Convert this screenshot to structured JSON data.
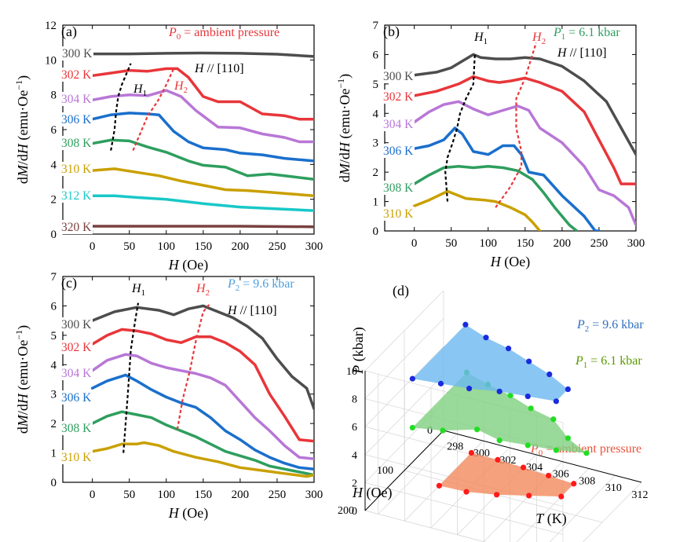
{
  "figure": {
    "colors": {
      "300": "#4d4d4d",
      "302": "#e8363a",
      "304": "#b877d6",
      "306": "#1a6fcc",
      "308": "#2e9e5e",
      "310": "#c9a000",
      "312": "#19c8c8",
      "320": "#7a4040",
      "H1": "#000000",
      "H2": "#e8363a"
    }
  },
  "chart_data": [
    {
      "type": "line",
      "panel": "(a)",
      "pressure_sym": "P",
      "pressure_sub": "0",
      "pressure_text": " = ambient pressure",
      "pressure_color": "#e8363a",
      "field_text": "H // [110]",
      "xlabel": "H (Oe)",
      "ylabel": "dM/dH (emu·Oe⁻¹)",
      "xlim": [
        -40,
        300
      ],
      "ylim": [
        0,
        12
      ],
      "xticks": [
        0,
        50,
        100,
        150,
        200,
        250,
        300
      ],
      "yticks": [
        0,
        2,
        4,
        6,
        8,
        10,
        12
      ],
      "series": [
        {
          "name": "300 K",
          "color_key": "300",
          "x": [
            0,
            50,
            100,
            150,
            200,
            250,
            300
          ],
          "y": [
            10.35,
            10.35,
            10.38,
            10.4,
            10.38,
            10.33,
            10.2
          ]
        },
        {
          "name": "302 K",
          "color_key": "302",
          "x": [
            0,
            25,
            50,
            75,
            100,
            115,
            130,
            150,
            170,
            200,
            230,
            260,
            280,
            300
          ],
          "y": [
            9.1,
            9.25,
            9.4,
            9.35,
            9.5,
            9.5,
            9.0,
            7.9,
            7.6,
            7.6,
            6.9,
            6.8,
            6.6,
            6.6
          ]
        },
        {
          "name": "304 K",
          "color_key": "304",
          "x": [
            0,
            25,
            50,
            75,
            100,
            120,
            140,
            170,
            200,
            230,
            260,
            280,
            300
          ],
          "y": [
            7.7,
            7.9,
            8.0,
            7.95,
            8.25,
            7.9,
            7.1,
            6.15,
            6.1,
            5.75,
            5.55,
            5.3,
            5.3
          ]
        },
        {
          "name": "306 K",
          "color_key": "306",
          "x": [
            0,
            25,
            50,
            75,
            90,
            110,
            130,
            150,
            180,
            200,
            230,
            260,
            300
          ],
          "y": [
            6.6,
            6.85,
            6.95,
            6.9,
            6.85,
            5.9,
            5.3,
            4.95,
            4.85,
            4.65,
            4.55,
            4.35,
            4.2
          ]
        },
        {
          "name": "308 K",
          "color_key": "308",
          "x": [
            0,
            25,
            50,
            75,
            100,
            130,
            150,
            180,
            210,
            240,
            270,
            300
          ],
          "y": [
            5.2,
            5.4,
            5.35,
            5.0,
            4.7,
            4.2,
            3.95,
            3.85,
            3.35,
            3.45,
            3.3,
            3.15
          ]
        },
        {
          "name": "310 K",
          "color_key": "310",
          "x": [
            0,
            30,
            60,
            90,
            120,
            150,
            180,
            210,
            240,
            270,
            300
          ],
          "y": [
            3.65,
            3.75,
            3.55,
            3.35,
            3.05,
            2.8,
            2.55,
            2.5,
            2.4,
            2.3,
            2.2
          ]
        },
        {
          "name": "312 K",
          "color_key": "312",
          "x": [
            0,
            30,
            60,
            100,
            150,
            200,
            250,
            300
          ],
          "y": [
            2.2,
            2.2,
            2.1,
            2.0,
            1.75,
            1.55,
            1.45,
            1.35
          ]
        },
        {
          "name": "320 K",
          "color_key": "320",
          "x": [
            0,
            100,
            200,
            300
          ],
          "y": [
            0.45,
            0.45,
            0.45,
            0.42
          ]
        }
      ],
      "phase_lines": [
        {
          "name": "H1",
          "color_key": "H1",
          "x": [
            25,
            30,
            32,
            35,
            40,
            52
          ],
          "y": [
            4.8,
            6.0,
            7.0,
            7.9,
            8.6,
            9.8
          ]
        },
        {
          "name": "H2",
          "color_key": "H2",
          "x": [
            55,
            65,
            75,
            88,
            98,
            110
          ],
          "y": [
            4.8,
            5.8,
            6.8,
            7.6,
            8.4,
            9.5
          ]
        }
      ]
    },
    {
      "type": "line",
      "panel": "(b)",
      "pressure_sym": "P",
      "pressure_sub": "1",
      "pressure_text": " = 6.1 kbar",
      "pressure_color": "#2e9e5e",
      "field_text": "H // [110]",
      "xlabel": "H (Oe)",
      "ylabel": "dM/dH (emu·Oe⁻¹)",
      "xlim": [
        -40,
        300
      ],
      "ylim": [
        0,
        7
      ],
      "xticks": [
        0,
        50,
        100,
        150,
        200,
        250,
        300
      ],
      "yticks": [
        0,
        1,
        2,
        3,
        4,
        5,
        6,
        7
      ],
      "series": [
        {
          "name": "300 K",
          "color_key": "300",
          "x": [
            0,
            30,
            50,
            70,
            80,
            90,
            110,
            130,
            150,
            170,
            200,
            230,
            260,
            280,
            300
          ],
          "y": [
            5.3,
            5.4,
            5.55,
            5.85,
            6.0,
            5.9,
            5.85,
            5.85,
            5.9,
            5.85,
            5.6,
            5.1,
            4.4,
            3.5,
            2.6
          ]
        },
        {
          "name": "302 K",
          "color_key": "302",
          "x": [
            0,
            30,
            60,
            80,
            100,
            115,
            130,
            150,
            170,
            200,
            230,
            250,
            270,
            280,
            300
          ],
          "y": [
            4.6,
            4.75,
            5.0,
            5.25,
            5.1,
            5.05,
            5.1,
            5.2,
            5.05,
            4.75,
            4.05,
            3.1,
            2.15,
            1.6,
            1.6
          ]
        },
        {
          "name": "304 K",
          "color_key": "304",
          "x": [
            0,
            20,
            40,
            60,
            80,
            100,
            120,
            140,
            155,
            170,
            200,
            230,
            250,
            270,
            290,
            300
          ],
          "y": [
            3.7,
            4.05,
            4.3,
            4.4,
            4.15,
            3.95,
            4.1,
            4.25,
            4.1,
            3.5,
            3.0,
            2.2,
            1.4,
            1.2,
            0.8,
            0.2
          ]
        },
        {
          "name": "306 K",
          "color_key": "306",
          "x": [
            0,
            20,
            40,
            55,
            65,
            80,
            100,
            120,
            135,
            145,
            155,
            175,
            200,
            230,
            245,
            250
          ],
          "y": [
            2.8,
            2.9,
            3.1,
            3.5,
            3.3,
            2.7,
            2.6,
            2.9,
            2.9,
            2.6,
            2.0,
            1.9,
            1.2,
            0.5,
            0.0,
            0.0
          ]
        },
        {
          "name": "308 K",
          "color_key": "308",
          "x": [
            0,
            20,
            40,
            60,
            80,
            100,
            120,
            140,
            160,
            175,
            190,
            210,
            220
          ],
          "y": [
            1.6,
            1.9,
            2.15,
            2.2,
            2.15,
            2.2,
            2.15,
            2.05,
            1.75,
            1.3,
            0.8,
            0.2,
            0.0
          ]
        },
        {
          "name": "310 K",
          "color_key": "310",
          "x": [
            0,
            20,
            45,
            70,
            95,
            110,
            130,
            150,
            160,
            170
          ],
          "y": [
            0.85,
            1.05,
            1.35,
            1.1,
            1.05,
            1.0,
            0.8,
            0.55,
            0.3,
            0.0
          ]
        }
      ],
      "phase_lines": [
        {
          "name": "H1",
          "color_key": "H1",
          "x": [
            45,
            42,
            45,
            52,
            58,
            62,
            70,
            80,
            82
          ],
          "y": [
            1.0,
            2.0,
            2.5,
            3.0,
            3.5,
            4.0,
            4.5,
            5.0,
            6.0
          ]
        },
        {
          "name": "H2",
          "color_key": "H2",
          "x": [
            110,
            130,
            145,
            145,
            138,
            138,
            150,
            160,
            165
          ],
          "y": [
            0.8,
            1.5,
            2.2,
            2.7,
            3.5,
            4.5,
            5.2,
            6.0,
            6.4
          ]
        }
      ]
    },
    {
      "type": "line",
      "panel": "(c)",
      "pressure_sym": "P",
      "pressure_sub": "2",
      "pressure_text": " = 9.6 kbar",
      "pressure_color": "#4f9fde",
      "field_text": "H // [110]",
      "xlabel": "H (Oe)",
      "ylabel": "dM/dH (emu·Oe⁻¹)",
      "xlim": [
        -40,
        300
      ],
      "ylim": [
        0,
        7
      ],
      "xticks": [
        0,
        50,
        100,
        150,
        200,
        250,
        300
      ],
      "yticks": [
        0,
        1,
        2,
        3,
        4,
        5,
        6,
        7
      ],
      "series": [
        {
          "name": "300 K",
          "color_key": "300",
          "x": [
            0,
            30,
            60,
            90,
            110,
            130,
            150,
            170,
            190,
            210,
            230,
            250,
            270,
            290,
            300
          ],
          "y": [
            5.5,
            5.8,
            5.95,
            5.85,
            5.7,
            5.9,
            6.0,
            5.8,
            5.6,
            5.3,
            4.9,
            4.2,
            3.6,
            3.2,
            2.5
          ]
        },
        {
          "name": "302 K",
          "color_key": "302",
          "x": [
            0,
            20,
            40,
            60,
            80,
            100,
            120,
            140,
            160,
            180,
            200,
            220,
            240,
            260,
            280,
            300
          ],
          "y": [
            4.7,
            5.0,
            5.2,
            5.15,
            5.05,
            4.85,
            4.75,
            4.95,
            4.95,
            4.75,
            4.45,
            4.0,
            3.0,
            2.25,
            1.45,
            1.4
          ]
        },
        {
          "name": "304 K",
          "color_key": "304",
          "x": [
            0,
            20,
            45,
            60,
            80,
            100,
            120,
            140,
            160,
            180,
            200,
            220,
            240,
            260,
            280,
            300
          ],
          "y": [
            3.8,
            4.15,
            4.35,
            4.3,
            4.05,
            3.9,
            3.8,
            3.7,
            3.55,
            3.3,
            2.75,
            2.2,
            1.75,
            1.25,
            0.85,
            0.8
          ]
        },
        {
          "name": "306 K",
          "color_key": "306",
          "x": [
            0,
            20,
            45,
            60,
            80,
            100,
            120,
            140,
            160,
            180,
            200,
            220,
            240,
            260,
            280,
            300
          ],
          "y": [
            3.2,
            3.45,
            3.65,
            3.45,
            3.15,
            2.9,
            2.7,
            2.55,
            2.2,
            1.75,
            1.45,
            1.1,
            0.85,
            0.65,
            0.5,
            0.45
          ]
        },
        {
          "name": "308 K",
          "color_key": "308",
          "x": [
            0,
            20,
            40,
            60,
            80,
            100,
            120,
            140,
            160,
            180,
            200,
            220,
            240,
            260,
            280,
            300
          ],
          "y": [
            2.0,
            2.25,
            2.4,
            2.3,
            2.2,
            1.95,
            1.75,
            1.55,
            1.3,
            1.05,
            0.9,
            0.75,
            0.55,
            0.45,
            0.35,
            0.25
          ]
        },
        {
          "name": "310 K",
          "color_key": "310",
          "x": [
            0,
            20,
            40,
            60,
            70,
            90,
            110,
            140,
            170,
            200,
            230,
            260,
            290,
            300
          ],
          "y": [
            1.05,
            1.15,
            1.3,
            1.3,
            1.35,
            1.25,
            1.05,
            0.85,
            0.7,
            0.5,
            0.4,
            0.3,
            0.2,
            0.25
          ]
        }
      ],
      "phase_lines": [
        {
          "name": "H1",
          "color_key": "H1",
          "x": [
            42,
            45,
            48,
            52,
            58,
            62
          ],
          "y": [
            1.0,
            2.0,
            3.0,
            4.5,
            5.5,
            6.1
          ]
        },
        {
          "name": "H2",
          "color_key": "H2",
          "x": [
            115,
            122,
            132,
            140,
            150,
            160
          ],
          "y": [
            1.8,
            2.8,
            3.8,
            4.8,
            5.8,
            6.1
          ]
        }
      ]
    },
    {
      "type": "scatter3d",
      "panel": "(d)",
      "xlabel": "T (K)",
      "ylabel": "H (Oe)",
      "zlabel": "P (kbar)",
      "xlim": [
        297,
        312
      ],
      "ylim": [
        0,
        200
      ],
      "zlim": [
        0,
        10
      ],
      "xticks": [
        298,
        300,
        302,
        304,
        306,
        308,
        310,
        312
      ],
      "yticks": [
        0,
        100,
        200
      ],
      "zticks": [
        0,
        2,
        4,
        6,
        8,
        10
      ],
      "series": [
        {
          "name": "P0",
          "sym": "P",
          "sub": "0",
          "label": " = ambient pressure",
          "color": "#e8533a",
          "fill": "#f28a5e",
          "marker": "#ff1a1a",
          "outline_T": [
            300,
            302,
            304,
            306,
            308,
            308,
            306,
            304,
            302,
            300
          ],
          "outline_H": [
            30,
            30,
            32,
            35,
            38,
            70,
            85,
            100,
            110,
            112
          ]
        },
        {
          "name": "P1",
          "sym": "P",
          "sub": "1",
          "label": " = 6.1 kbar",
          "color": "#5a9a00",
          "fill": "#7fcf7f",
          "marker": "#22dd22",
          "outline_T": [
            300,
            302,
            304,
            306,
            308,
            310,
            312,
            310,
            308,
            306,
            304,
            302,
            300
          ],
          "outline_H": [
            42,
            55,
            65,
            80,
            90,
            120,
            140,
            150,
            155,
            160,
            150,
            170,
            180
          ]
        },
        {
          "name": "P2",
          "sym": "P",
          "sub": "2",
          "label": " = 9.6 kbar",
          "color": "#2f6fbf",
          "fill": "#6bb8f0",
          "marker": "#1a2bdd",
          "outline_T": [
            300,
            302,
            304,
            306,
            308,
            310,
            310,
            308,
            306,
            304,
            302,
            300
          ],
          "outline_H": [
            45,
            60,
            70,
            85,
            100,
            120,
            150,
            155,
            160,
            170,
            175,
            180
          ]
        }
      ]
    }
  ]
}
